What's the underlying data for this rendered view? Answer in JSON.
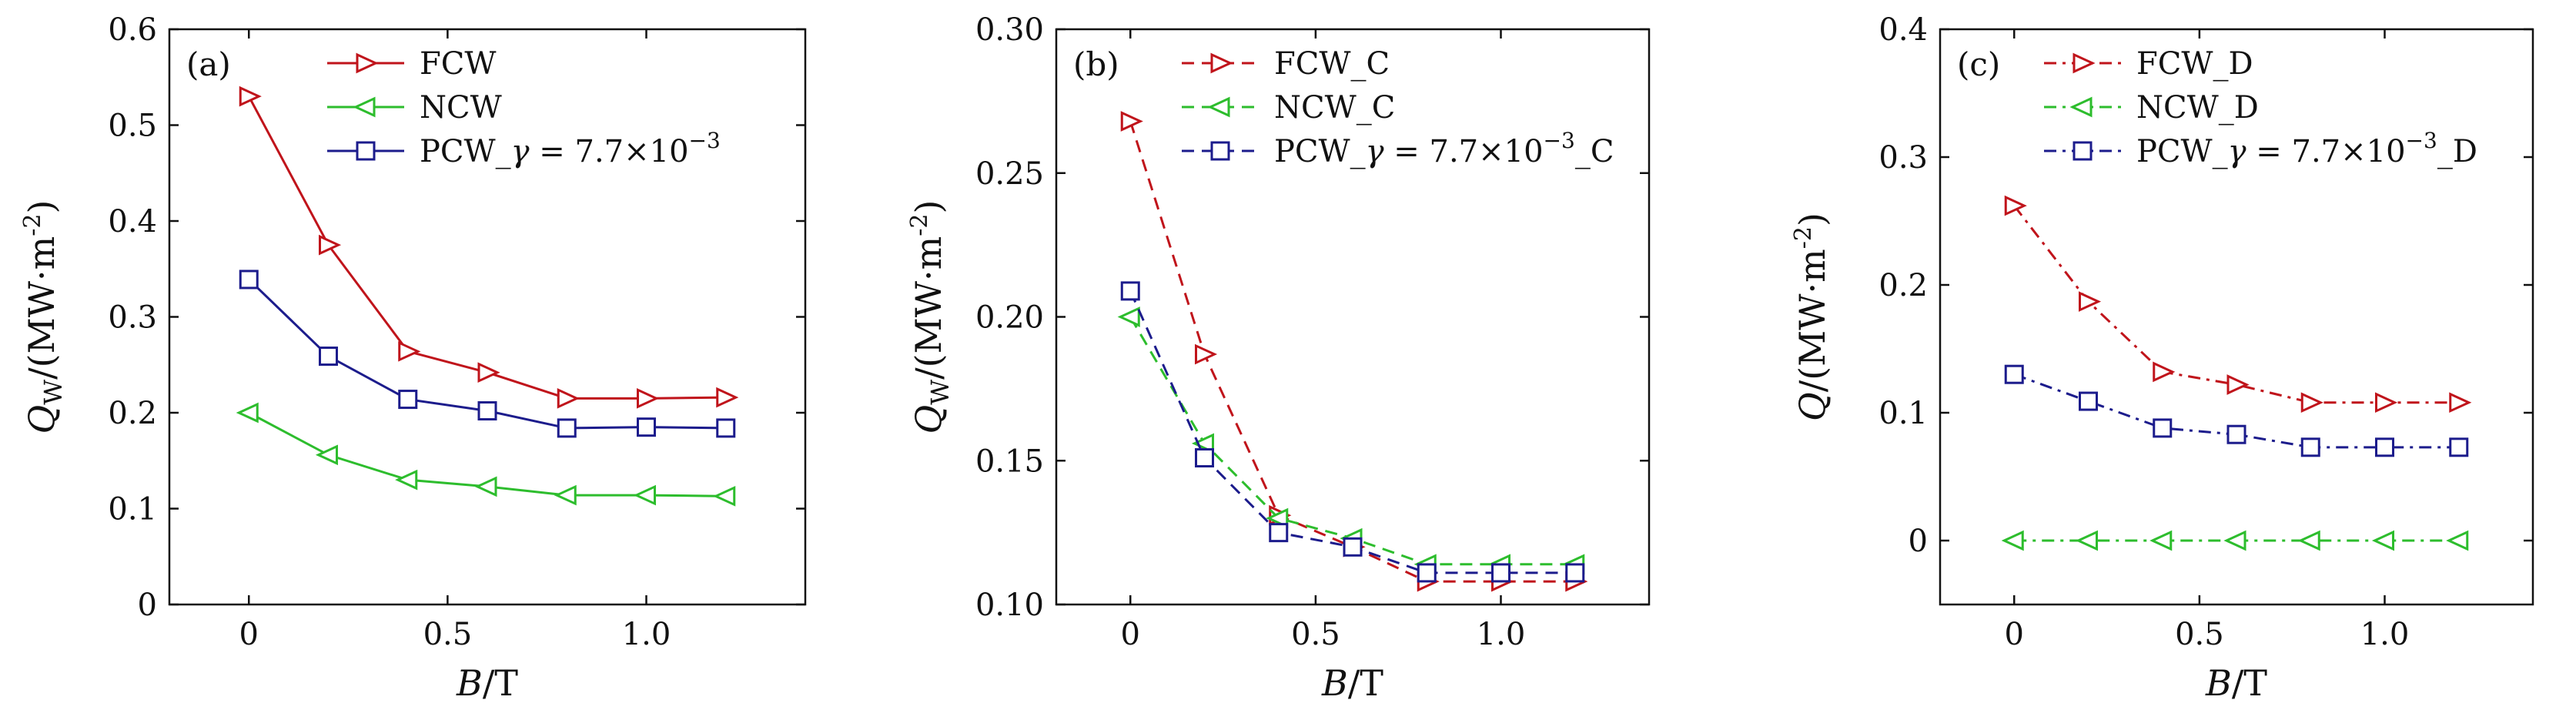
{
  "chart_data": [
    {
      "type": "line",
      "panel_tag": "(a)",
      "xlabel": "B/T",
      "ylabel": "Q_W/(MW·m^-2)",
      "ylabel_main": "Q",
      "ylabel_sub": "W",
      "ylabel_rest": "/(MW·m",
      "ylabel_sup": "-2",
      "ylabel_end": ")",
      "xlim": [
        -0.2,
        1.4
      ],
      "ylim": [
        0,
        0.6
      ],
      "xticks": [
        0,
        0.5,
        1.0
      ],
      "xtick_labels": [
        "0",
        "0.5",
        "1.0"
      ],
      "yticks": [
        0,
        0.1,
        0.2,
        0.3,
        0.4,
        0.5,
        0.6
      ],
      "ytick_labels": [
        "0",
        "0.1",
        "0.2",
        "0.3",
        "0.4",
        "0.5",
        "0.6"
      ],
      "legend_position": "top-center",
      "x": [
        0,
        0.2,
        0.4,
        0.6,
        0.8,
        1.0,
        1.2
      ],
      "series": [
        {
          "name": "FCW",
          "legend_main": "FCW",
          "color": "#c0141b",
          "dash": "solid",
          "marker": "triangle-right",
          "values": [
            0.53,
            0.375,
            0.264,
            0.242,
            0.215,
            0.215,
            0.216
          ]
        },
        {
          "name": "NCW",
          "legend_main": "NCW",
          "color": "#2dbd2d",
          "dash": "solid",
          "marker": "triangle-left",
          "values": [
            0.2,
            0.156,
            0.13,
            0.123,
            0.114,
            0.114,
            0.113
          ]
        },
        {
          "name": "PCW_γ = 7.7×10^-3",
          "legend_main": "PCW_γ = 7.7×10",
          "legend_sup": "−3",
          "legend_end": "",
          "color": "#1c1c8c",
          "dash": "solid",
          "marker": "square",
          "values": [
            0.339,
            0.259,
            0.214,
            0.202,
            0.184,
            0.185,
            0.184
          ]
        }
      ]
    },
    {
      "type": "line",
      "panel_tag": "(b)",
      "xlabel": "B/T",
      "ylabel": "Q_W/(MW·m^-2)",
      "ylabel_main": "Q",
      "ylabel_sub": "W",
      "ylabel_rest": "/(MW·m",
      "ylabel_sup": "-2",
      "ylabel_end": ")",
      "xlim": [
        -0.2,
        1.4
      ],
      "ylim": [
        0.1,
        0.3
      ],
      "xticks": [
        0,
        0.5,
        1.0
      ],
      "xtick_labels": [
        "0",
        "0.5",
        "1.0"
      ],
      "yticks": [
        0.1,
        0.15,
        0.2,
        0.25,
        0.3
      ],
      "ytick_labels": [
        "0.10",
        "0.15",
        "0.20",
        "0.25",
        "0.30"
      ],
      "legend_position": "top-center",
      "x": [
        0,
        0.2,
        0.4,
        0.6,
        0.8,
        1.0,
        1.2
      ],
      "series": [
        {
          "name": "FCW_C",
          "legend_main": "FCW_C",
          "color": "#c0141b",
          "dash": "dashed",
          "marker": "triangle-right",
          "values": [
            0.268,
            0.187,
            0.131,
            0.12,
            0.108,
            0.108,
            0.108
          ]
        },
        {
          "name": "NCW_C",
          "legend_main": "NCW_C",
          "color": "#2dbd2d",
          "dash": "dashed",
          "marker": "triangle-left",
          "values": [
            0.2,
            0.156,
            0.13,
            0.123,
            0.114,
            0.114,
            0.114
          ]
        },
        {
          "name": "PCW_γ = 7.7×10^-3_C",
          "legend_main": "PCW_γ = 7.7×10",
          "legend_sup": "−3",
          "legend_end": "_C",
          "color": "#1c1c8c",
          "dash": "dashed",
          "marker": "square",
          "values": [
            0.209,
            0.151,
            0.125,
            0.12,
            0.111,
            0.111,
            0.111
          ]
        }
      ]
    },
    {
      "type": "line",
      "panel_tag": "(c)",
      "xlabel": "B/T",
      "ylabel": "Q/(MW·m^-2)",
      "ylabel_main": "Q",
      "ylabel_sub": "",
      "ylabel_rest": "/(MW·m",
      "ylabel_sup": "-2",
      "ylabel_end": ")",
      "xlim": [
        -0.2,
        1.4
      ],
      "ylim": [
        -0.05,
        0.4
      ],
      "xticks": [
        0,
        0.5,
        1.0
      ],
      "xtick_labels": [
        "0",
        "0.5",
        "1.0"
      ],
      "yticks": [
        0,
        0.1,
        0.2,
        0.3,
        0.4
      ],
      "ytick_labels": [
        "0",
        "0.1",
        "0.2",
        "0.3",
        "0.4"
      ],
      "legend_position": "top-center",
      "x": [
        0,
        0.2,
        0.4,
        0.6,
        0.8,
        1.0,
        1.2
      ],
      "series": [
        {
          "name": "FCW_D",
          "legend_main": "FCW_D",
          "color": "#c0141b",
          "dash": "dashdot",
          "marker": "triangle-right",
          "values": [
            0.262,
            0.187,
            0.132,
            0.122,
            0.108,
            0.108,
            0.108
          ]
        },
        {
          "name": "NCW_D",
          "legend_main": "NCW_D",
          "color": "#2dbd2d",
          "dash": "dashdot",
          "marker": "triangle-left",
          "values": [
            0,
            0,
            0,
            0,
            0,
            0,
            0
          ]
        },
        {
          "name": "PCW_γ = 7.7×10^-3_D",
          "legend_main": "PCW_γ = 7.7×10",
          "legend_sup": "−3",
          "legend_end": "_D",
          "color": "#1c1c8c",
          "dash": "dashdot",
          "marker": "square",
          "values": [
            0.13,
            0.109,
            0.088,
            0.083,
            0.073,
            0.073,
            0.073
          ]
        }
      ]
    }
  ]
}
